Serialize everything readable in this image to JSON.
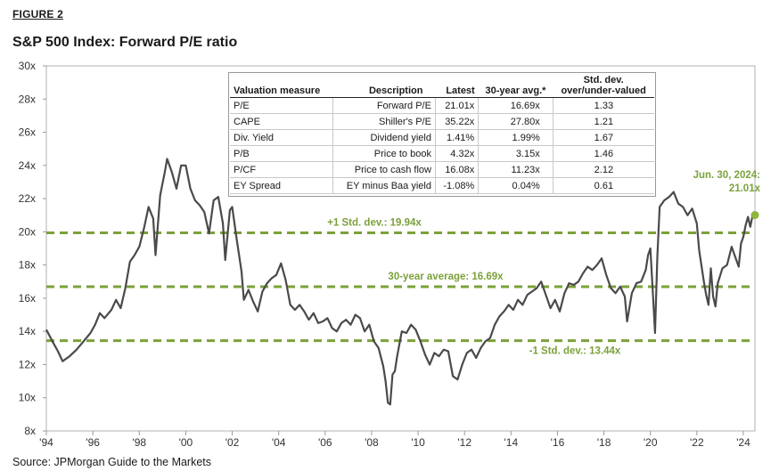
{
  "figure_label": "FIGURE 2",
  "title": "S&P 500 Index: Forward P/E ratio",
  "source": "Source: JPMorgan Guide to the Markets",
  "colors": {
    "line": "#4a4a4a",
    "accent": "#7ba13a",
    "endpoint": "#8cb63c"
  },
  "table": {
    "headers": [
      "Valuation measure",
      "Description",
      "Latest",
      "30-year avg.*",
      "Std. dev. over/under-valued"
    ],
    "header_std_line1": "Std. dev.",
    "header_std_line2": "over/under-valued",
    "rows": [
      {
        "measure": "P/E",
        "description": "Forward P/E",
        "latest": "21.01x",
        "avg": "16.69x",
        "std": "1.33"
      },
      {
        "measure": "CAPE",
        "description": "Shiller's P/E",
        "latest": "35.22x",
        "avg": "27.80x",
        "std": "1.21"
      },
      {
        "measure": "Div. Yield",
        "description": "Dividend yield",
        "latest": "1.41%",
        "avg": "1.99%",
        "std": "1.67"
      },
      {
        "measure": "P/B",
        "description": "Price to book",
        "latest": "4.32x",
        "avg": "3.15x",
        "std": "1.46"
      },
      {
        "measure": "P/CF",
        "description": "Price to cash flow",
        "latest": "16.08x",
        "avg": "11.23x",
        "std": "2.12"
      },
      {
        "measure": "EY Spread",
        "description": "EY minus Baa yield",
        "latest": "-1.08%",
        "avg": "0.04%",
        "std": "0.61"
      }
    ]
  },
  "chart_data": {
    "type": "line",
    "title": "S&P 500 Index: Forward P/E ratio",
    "xlabel": "",
    "ylabel": "",
    "xlim": [
      1994,
      2024.5
    ],
    "ylim": [
      8,
      30
    ],
    "x_ticks": [
      "'94",
      "'96",
      "'98",
      "'00",
      "'02",
      "'04",
      "'06",
      "'08",
      "'10",
      "'12",
      "'14",
      "'16",
      "'18",
      "'20",
      "'22",
      "'24"
    ],
    "x_tick_values": [
      1994,
      1996,
      1998,
      2000,
      2002,
      2004,
      2006,
      2008,
      2010,
      2012,
      2014,
      2016,
      2018,
      2020,
      2022,
      2024
    ],
    "y_ticks": [
      "8x",
      "10x",
      "12x",
      "14x",
      "16x",
      "18x",
      "20x",
      "22x",
      "24x",
      "26x",
      "28x",
      "30x"
    ],
    "y_tick_values": [
      8,
      10,
      12,
      14,
      16,
      18,
      20,
      22,
      24,
      26,
      28,
      30
    ],
    "reference_lines": [
      {
        "name": "+1 Std. dev.",
        "value": 19.94,
        "label": "+1 Std. dev.: 19.94x"
      },
      {
        "name": "30-year average",
        "value": 16.69,
        "label": "30-year average: 16.69x"
      },
      {
        "name": "-1 Std. dev.",
        "value": 13.44,
        "label": "-1 Std. dev.: 13.44x"
      }
    ],
    "endpoint": {
      "x": 2024.5,
      "y": 21.01,
      "label_line1": "Jun. 30, 2024:",
      "label_line2": "21.01x"
    },
    "series": [
      {
        "name": "Forward P/E",
        "points": [
          [
            1994.0,
            14.1
          ],
          [
            1994.3,
            13.3
          ],
          [
            1994.5,
            12.8
          ],
          [
            1994.7,
            12.2
          ],
          [
            1995.0,
            12.5
          ],
          [
            1995.3,
            12.9
          ],
          [
            1995.6,
            13.4
          ],
          [
            1995.9,
            13.9
          ],
          [
            1996.1,
            14.4
          ],
          [
            1996.3,
            15.1
          ],
          [
            1996.5,
            14.8
          ],
          [
            1996.8,
            15.3
          ],
          [
            1997.0,
            15.9
          ],
          [
            1997.2,
            15.4
          ],
          [
            1997.4,
            16.6
          ],
          [
            1997.6,
            18.2
          ],
          [
            1997.8,
            18.6
          ],
          [
            1998.0,
            19.1
          ],
          [
            1998.2,
            20.2
          ],
          [
            1998.4,
            21.5
          ],
          [
            1998.6,
            20.8
          ],
          [
            1998.7,
            18.6
          ],
          [
            1998.9,
            22.2
          ],
          [
            1999.1,
            23.6
          ],
          [
            1999.2,
            24.4
          ],
          [
            1999.4,
            23.6
          ],
          [
            1999.6,
            22.6
          ],
          [
            1999.8,
            24.0
          ],
          [
            2000.0,
            24.0
          ],
          [
            2000.2,
            22.6
          ],
          [
            2000.4,
            21.9
          ],
          [
            2000.6,
            21.6
          ],
          [
            2000.8,
            21.2
          ],
          [
            2001.0,
            19.9
          ],
          [
            2001.2,
            21.9
          ],
          [
            2001.4,
            22.1
          ],
          [
            2001.6,
            20.5
          ],
          [
            2001.7,
            18.3
          ],
          [
            2001.9,
            21.3
          ],
          [
            2002.0,
            21.5
          ],
          [
            2002.2,
            19.5
          ],
          [
            2002.4,
            17.6
          ],
          [
            2002.5,
            15.9
          ],
          [
            2002.7,
            16.5
          ],
          [
            2002.9,
            15.8
          ],
          [
            2003.1,
            15.2
          ],
          [
            2003.3,
            16.4
          ],
          [
            2003.5,
            16.9
          ],
          [
            2003.7,
            17.2
          ],
          [
            2003.9,
            17.4
          ],
          [
            2004.1,
            18.1
          ],
          [
            2004.3,
            17.1
          ],
          [
            2004.5,
            15.6
          ],
          [
            2004.7,
            15.3
          ],
          [
            2004.9,
            15.6
          ],
          [
            2005.1,
            15.2
          ],
          [
            2005.3,
            14.7
          ],
          [
            2005.5,
            15.1
          ],
          [
            2005.7,
            14.5
          ],
          [
            2005.9,
            14.6
          ],
          [
            2006.1,
            14.8
          ],
          [
            2006.3,
            14.2
          ],
          [
            2006.5,
            14.0
          ],
          [
            2006.7,
            14.5
          ],
          [
            2006.9,
            14.7
          ],
          [
            2007.1,
            14.4
          ],
          [
            2007.3,
            15.0
          ],
          [
            2007.5,
            14.8
          ],
          [
            2007.7,
            14.0
          ],
          [
            2007.9,
            14.4
          ],
          [
            2008.1,
            13.4
          ],
          [
            2008.3,
            13.0
          ],
          [
            2008.5,
            11.9
          ],
          [
            2008.6,
            11.0
          ],
          [
            2008.7,
            9.7
          ],
          [
            2008.8,
            9.6
          ],
          [
            2008.9,
            11.4
          ],
          [
            2009.0,
            11.6
          ],
          [
            2009.1,
            12.5
          ],
          [
            2009.3,
            14.0
          ],
          [
            2009.5,
            13.9
          ],
          [
            2009.7,
            14.4
          ],
          [
            2009.9,
            14.1
          ],
          [
            2010.1,
            13.4
          ],
          [
            2010.3,
            12.6
          ],
          [
            2010.5,
            12.0
          ],
          [
            2010.7,
            12.7
          ],
          [
            2010.9,
            12.5
          ],
          [
            2011.1,
            12.9
          ],
          [
            2011.3,
            12.8
          ],
          [
            2011.5,
            11.3
          ],
          [
            2011.7,
            11.1
          ],
          [
            2011.9,
            12.0
          ],
          [
            2012.1,
            12.7
          ],
          [
            2012.3,
            12.9
          ],
          [
            2012.5,
            12.4
          ],
          [
            2012.7,
            13.0
          ],
          [
            2012.9,
            13.4
          ],
          [
            2013.1,
            13.6
          ],
          [
            2013.3,
            14.4
          ],
          [
            2013.5,
            14.9
          ],
          [
            2013.7,
            15.2
          ],
          [
            2013.9,
            15.6
          ],
          [
            2014.1,
            15.3
          ],
          [
            2014.3,
            15.9
          ],
          [
            2014.5,
            15.6
          ],
          [
            2014.7,
            16.2
          ],
          [
            2014.9,
            16.4
          ],
          [
            2015.1,
            16.6
          ],
          [
            2015.3,
            17.0
          ],
          [
            2015.5,
            16.2
          ],
          [
            2015.7,
            15.4
          ],
          [
            2015.9,
            15.9
          ],
          [
            2016.1,
            15.2
          ],
          [
            2016.3,
            16.3
          ],
          [
            2016.5,
            16.9
          ],
          [
            2016.7,
            16.8
          ],
          [
            2016.9,
            17.0
          ],
          [
            2017.1,
            17.5
          ],
          [
            2017.3,
            17.9
          ],
          [
            2017.5,
            17.7
          ],
          [
            2017.7,
            18.0
          ],
          [
            2017.9,
            18.4
          ],
          [
            2018.1,
            17.4
          ],
          [
            2018.3,
            16.6
          ],
          [
            2018.5,
            16.3
          ],
          [
            2018.7,
            16.7
          ],
          [
            2018.9,
            16.1
          ],
          [
            2019.0,
            14.6
          ],
          [
            2019.2,
            16.3
          ],
          [
            2019.4,
            16.9
          ],
          [
            2019.6,
            17.0
          ],
          [
            2019.8,
            17.7
          ],
          [
            2019.9,
            18.6
          ],
          [
            2020.0,
            19.0
          ],
          [
            2020.1,
            16.5
          ],
          [
            2020.2,
            13.9
          ],
          [
            2020.3,
            18.5
          ],
          [
            2020.4,
            21.5
          ],
          [
            2020.6,
            21.9
          ],
          [
            2020.8,
            22.1
          ],
          [
            2021.0,
            22.4
          ],
          [
            2021.2,
            21.7
          ],
          [
            2021.4,
            21.5
          ],
          [
            2021.6,
            21.0
          ],
          [
            2021.8,
            21.4
          ],
          [
            2022.0,
            20.5
          ],
          [
            2022.1,
            18.9
          ],
          [
            2022.3,
            17.0
          ],
          [
            2022.4,
            16.2
          ],
          [
            2022.5,
            15.6
          ],
          [
            2022.6,
            17.8
          ],
          [
            2022.7,
            16.1
          ],
          [
            2022.8,
            15.5
          ],
          [
            2022.9,
            16.9
          ],
          [
            2023.1,
            17.8
          ],
          [
            2023.3,
            18.0
          ],
          [
            2023.5,
            19.1
          ],
          [
            2023.6,
            18.7
          ],
          [
            2023.8,
            17.9
          ],
          [
            2023.9,
            19.3
          ],
          [
            2024.0,
            19.7
          ],
          [
            2024.1,
            20.4
          ],
          [
            2024.2,
            20.9
          ],
          [
            2024.3,
            20.3
          ],
          [
            2024.4,
            21.0
          ],
          [
            2024.5,
            21.01
          ]
        ]
      }
    ]
  }
}
